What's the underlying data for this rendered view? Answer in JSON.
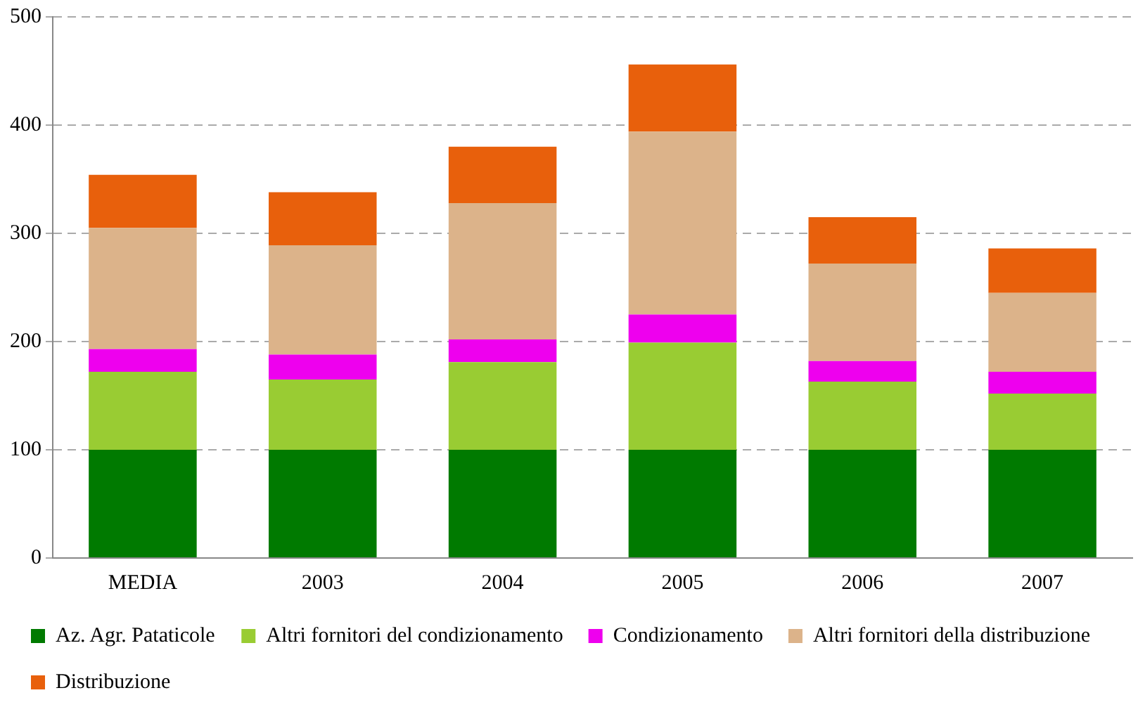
{
  "chart_data": {
    "type": "bar",
    "stacked": true,
    "categories": [
      "MEDIA",
      "2003",
      "2004",
      "2005",
      "2006",
      "2007"
    ],
    "series": [
      {
        "name": "Az. Agr. Pataticole",
        "color": "#007a00",
        "values": [
          100,
          100,
          100,
          100,
          100,
          100
        ]
      },
      {
        "name": "Altri fornitori del condizionamento",
        "color": "#99cc33",
        "values": [
          72,
          65,
          81,
          99,
          63,
          52
        ]
      },
      {
        "name": "Condizionamento",
        "color": "#ee00ee",
        "values": [
          21,
          23,
          21,
          26,
          19,
          20
        ]
      },
      {
        "name": "Altri fornitori della distribuzione",
        "color": "#dcb38a",
        "values": [
          112,
          101,
          126,
          169,
          90,
          73
        ]
      },
      {
        "name": "Distribuzione",
        "color": "#e8600c",
        "values": [
          49,
          49,
          52,
          62,
          43,
          41
        ]
      }
    ],
    "ylim": [
      0,
      500
    ],
    "yticks": [
      0,
      100,
      200,
      300,
      400,
      500
    ],
    "grid": "y",
    "legend": "bottom"
  }
}
